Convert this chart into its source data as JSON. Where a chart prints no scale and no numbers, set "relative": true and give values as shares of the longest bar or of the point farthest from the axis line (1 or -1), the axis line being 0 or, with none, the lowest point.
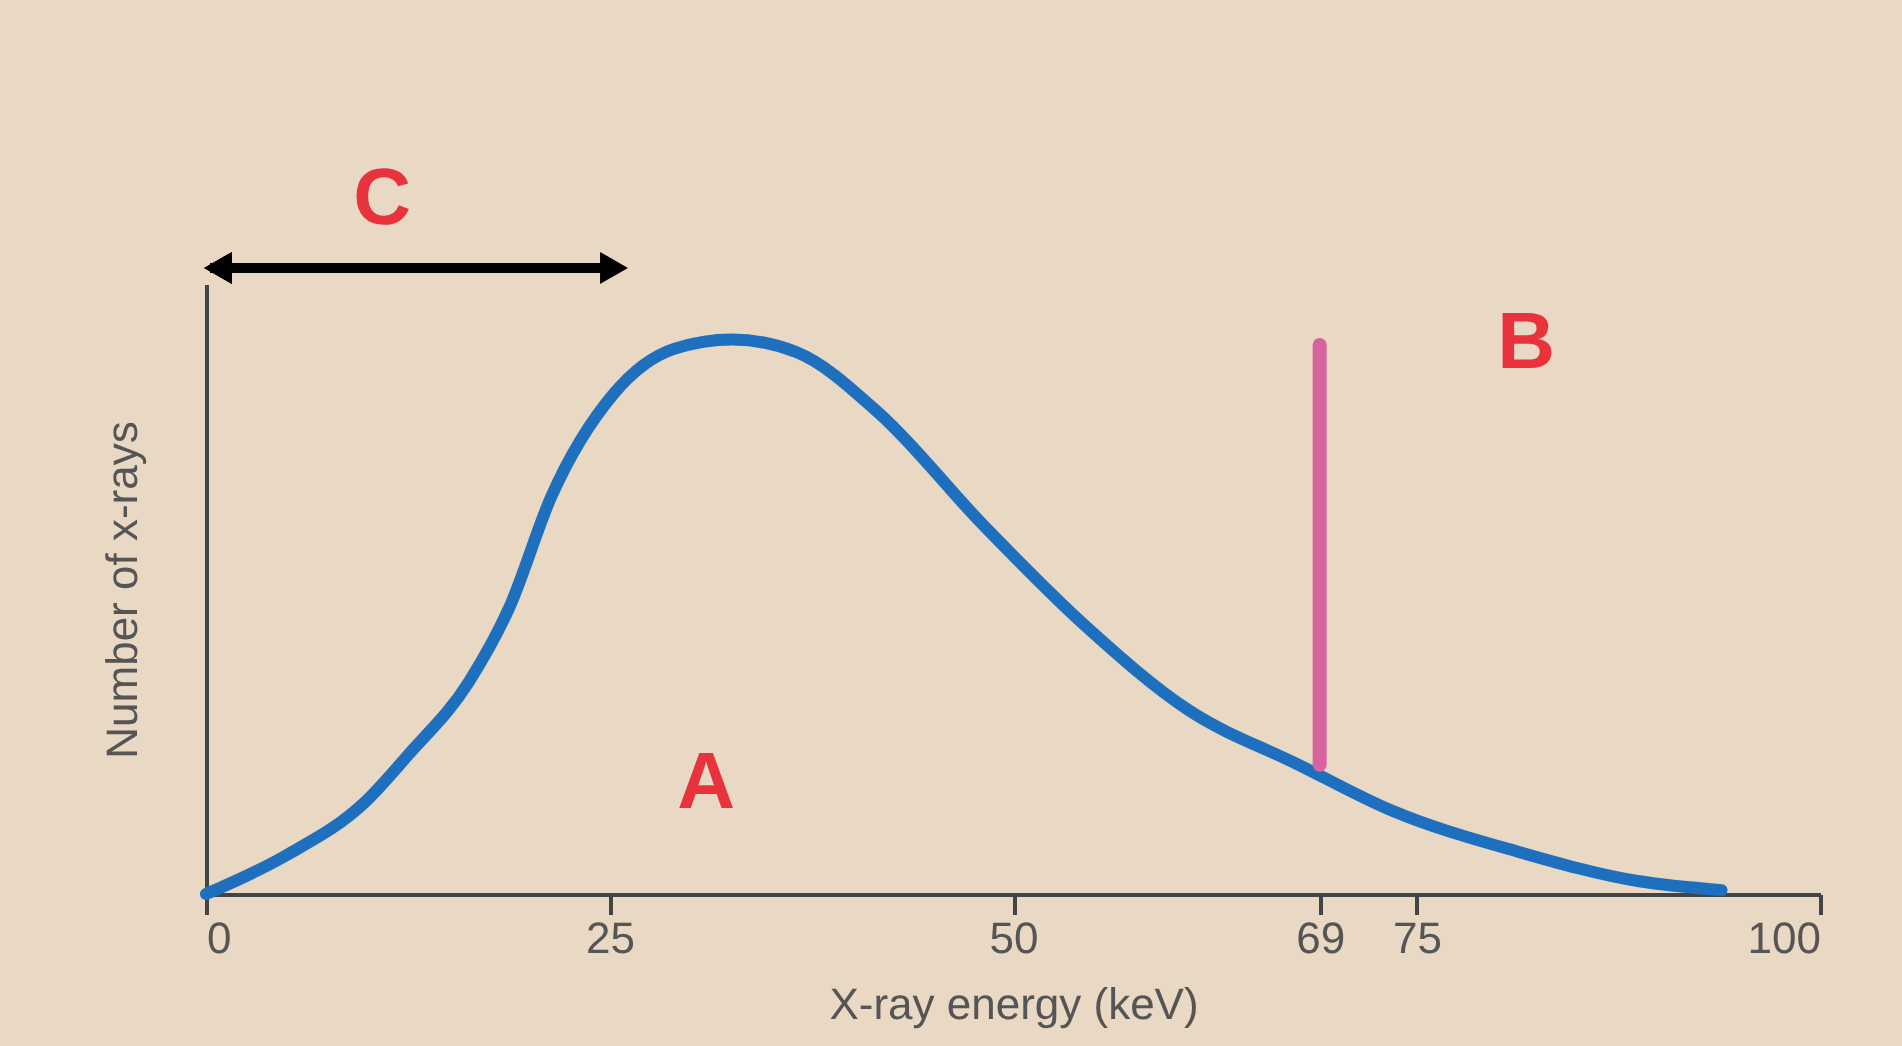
{
  "chart_data": {
    "type": "line",
    "relative": true,
    "xlabel": "X-ray energy (keV)",
    "ylabel": "Number of x-rays",
    "xlim": [
      0,
      100
    ],
    "xticks": [
      0,
      25,
      50,
      69,
      75,
      100
    ],
    "series": [
      {
        "color": "#1f6fbf",
        "x": [
          0,
          4.8,
          9.9,
          12.5,
          16.3,
          18.8,
          21.4,
          25.2,
          29,
          32.6,
          36.6,
          41.7,
          48.1,
          54.5,
          60.8,
          67.7,
          73.5,
          81.2,
          88.8,
          93.9
        ],
        "values": [
          0,
          0.067,
          0.167,
          0.25,
          0.383,
          0.517,
          0.717,
          0.9,
          0.983,
          1.0,
          0.977,
          0.867,
          0.667,
          0.483,
          0.333,
          0.233,
          0.15,
          0.077,
          0.023,
          0.007
        ]
      },
      {
        "color": "#d8649f",
        "x": [
          69,
          69
        ],
        "values": [
          0.233,
          0.99
        ]
      }
    ],
    "annotations": [
      "A",
      "B",
      "C"
    ],
    "grid": false,
    "marker": "none",
    "line_style": "solid"
  }
}
